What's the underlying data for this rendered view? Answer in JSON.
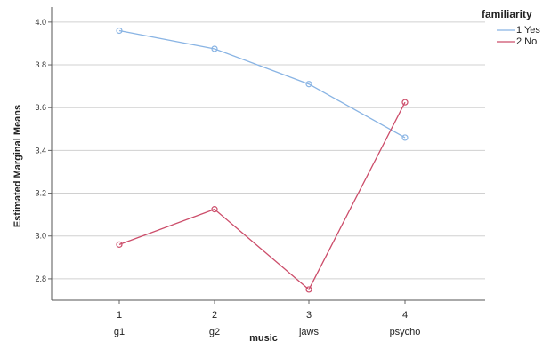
{
  "chart_data": {
    "type": "line",
    "xlabel": "music",
    "ylabel": "Estimated Marginal Means",
    "categories": [
      "1",
      "2",
      "3",
      "4"
    ],
    "category_sublabels": [
      "g1",
      "g2",
      "jaws",
      "psycho"
    ],
    "ylim": [
      2.7,
      4.07
    ],
    "yticks": [
      2.8,
      3.0,
      3.2,
      3.4,
      3.6,
      3.8,
      4.0
    ],
    "ytick_labels": [
      "2.8",
      "3.0",
      "3.2",
      "3.4",
      "3.6",
      "3.8",
      "4.0"
    ],
    "grid": true,
    "legend": {
      "title": "familiarity",
      "placement": "top-right"
    },
    "series": [
      {
        "name": "1 Yes",
        "color": "#89b4e4",
        "values": [
          3.96,
          3.875,
          3.71,
          3.46
        ]
      },
      {
        "name": "2 No",
        "color": "#cc4d6a",
        "values": [
          2.96,
          3.125,
          2.75,
          3.625
        ]
      }
    ]
  }
}
